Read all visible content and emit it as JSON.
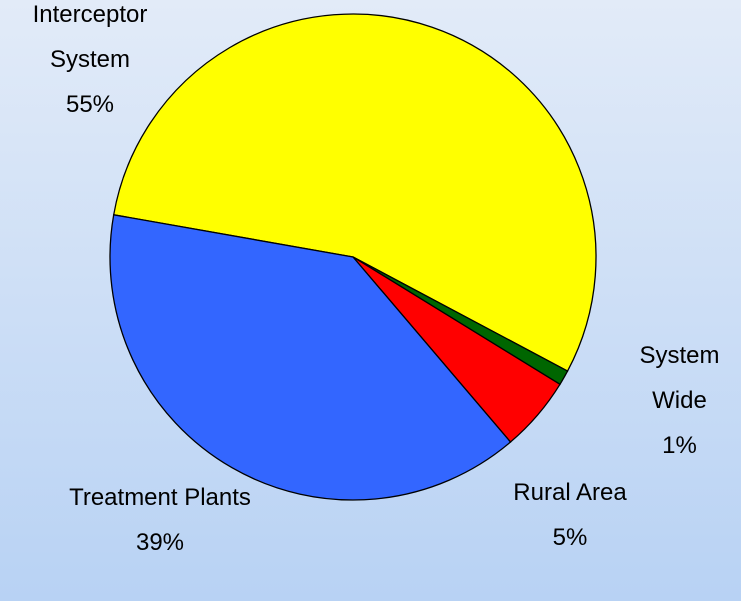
{
  "chart_data": {
    "type": "pie",
    "categories": [
      "Interceptor System",
      "System Wide",
      "Rural Area",
      "Treatment Plants"
    ],
    "values": [
      55,
      1,
      5,
      39
    ],
    "value_labels": [
      "55%",
      "1%",
      "5%",
      "39%"
    ],
    "colors": [
      "#ffff00",
      "#006600",
      "#ff0000",
      "#3366ff"
    ]
  }
}
